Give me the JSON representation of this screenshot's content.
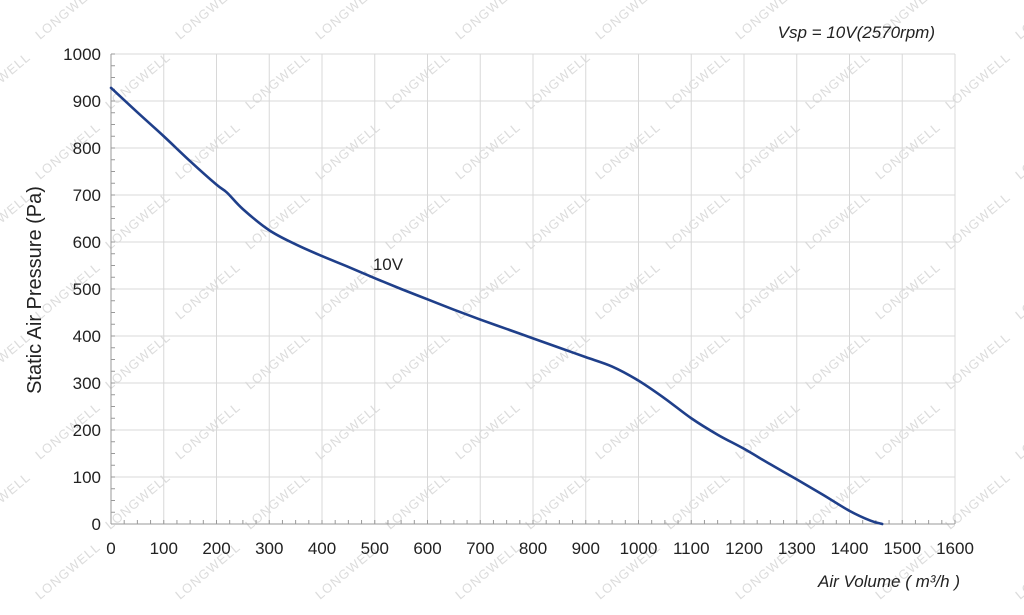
{
  "chart_data": {
    "type": "line",
    "title": "Vsp = 10V(2570rpm)",
    "xlabel": "Air Volume ( m³/h )",
    "ylabel": "Static Air Pressure  (Pa)",
    "xlim": [
      0,
      1600
    ],
    "ylim": [
      0,
      1000
    ],
    "xticks": [
      0,
      100,
      200,
      300,
      400,
      500,
      600,
      700,
      800,
      900,
      1000,
      1100,
      1200,
      1300,
      1400,
      1500,
      1600
    ],
    "yticks": [
      0,
      100,
      200,
      300,
      400,
      500,
      600,
      700,
      800,
      900,
      1000
    ],
    "grid": true,
    "watermark": "LONGWELL",
    "series": [
      {
        "name": "10V",
        "color": "#1f3f8a",
        "x": [
          0,
          50,
          100,
          150,
          200,
          220,
          250,
          300,
          350,
          400,
          450,
          500,
          550,
          600,
          650,
          700,
          750,
          800,
          850,
          900,
          950,
          1000,
          1050,
          1100,
          1150,
          1200,
          1250,
          1300,
          1350,
          1400,
          1440,
          1462
        ],
        "y": [
          928,
          876,
          825,
          772,
          722,
          705,
          670,
          625,
          595,
          570,
          547,
          523,
          500,
          478,
          456,
          435,
          415,
          395,
          375,
          355,
          335,
          305,
          267,
          225,
          190,
          160,
          127,
          95,
          62,
          28,
          7,
          0
        ]
      }
    ],
    "annotations": [
      {
        "text": "10V",
        "x": 525,
        "y": 540
      }
    ]
  }
}
